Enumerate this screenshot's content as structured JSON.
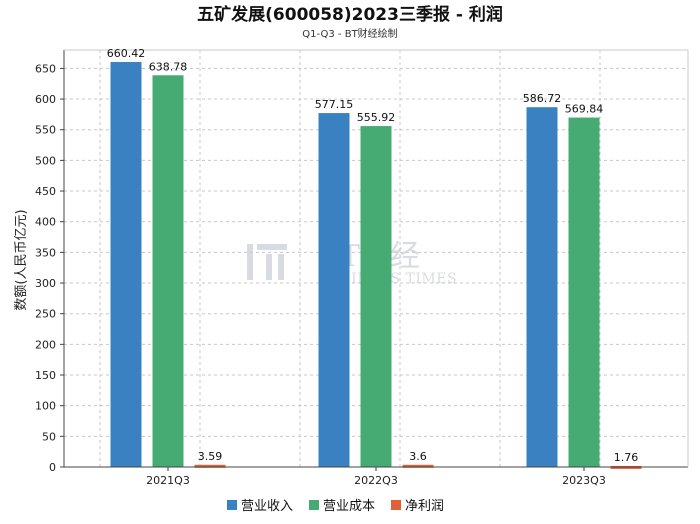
{
  "chart_data": {
    "type": "bar",
    "title": "五矿发展(600058)2023三季报 - 利润",
    "subtitle": "Q1-Q3 - BT财经绘制",
    "ylabel": "数额(人民币亿元)",
    "xlabel": "",
    "categories": [
      "2021Q3",
      "2022Q3",
      "2023Q3"
    ],
    "ylim": [
      0,
      680
    ],
    "yticks": [
      0,
      50,
      100,
      150,
      200,
      250,
      300,
      350,
      400,
      450,
      500,
      550,
      600,
      650
    ],
    "grid": true,
    "legend_position": "bottom-center",
    "series": [
      {
        "name": "营业收入",
        "color": "#3a81c1",
        "values": [
          660.42,
          577.15,
          586.72
        ],
        "labels": [
          "660.42",
          "577.15",
          "586.72"
        ]
      },
      {
        "name": "营业成本",
        "color": "#45ab72",
        "values": [
          638.78,
          555.92,
          569.84
        ],
        "labels": [
          "638.78",
          "555.92",
          "569.84"
        ]
      },
      {
        "name": "净利润",
        "color": "#e0603a",
        "values": [
          3.59,
          3.6,
          1.76
        ],
        "labels": [
          "3.59",
          "3.6",
          "1.76"
        ]
      }
    ]
  },
  "watermark": {
    "logo_text": "BT财经",
    "sub_text": "BUSINESS TIMES"
  }
}
